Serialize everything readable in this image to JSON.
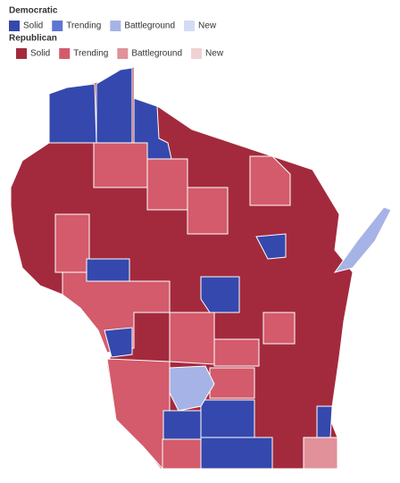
{
  "legend": {
    "groups": [
      {
        "title": "Democratic",
        "items": [
          {
            "label": "Solid",
            "color": "#3548ad"
          },
          {
            "label": "Trending",
            "color": "#5c76d4"
          },
          {
            "label": "Battleground",
            "color": "#a6b3e6"
          },
          {
            "label": "New",
            "color": "#d4dbf4"
          }
        ]
      },
      {
        "title": "Republican",
        "items": [
          {
            "label": "Solid",
            "color": "#a32a3d"
          },
          {
            "label": "Trending",
            "color": "#d35b6b"
          },
          {
            "label": "Battleground",
            "color": "#e0919a"
          },
          {
            "label": "New",
            "color": "#f0d2d2"
          }
        ]
      }
    ]
  }
}
